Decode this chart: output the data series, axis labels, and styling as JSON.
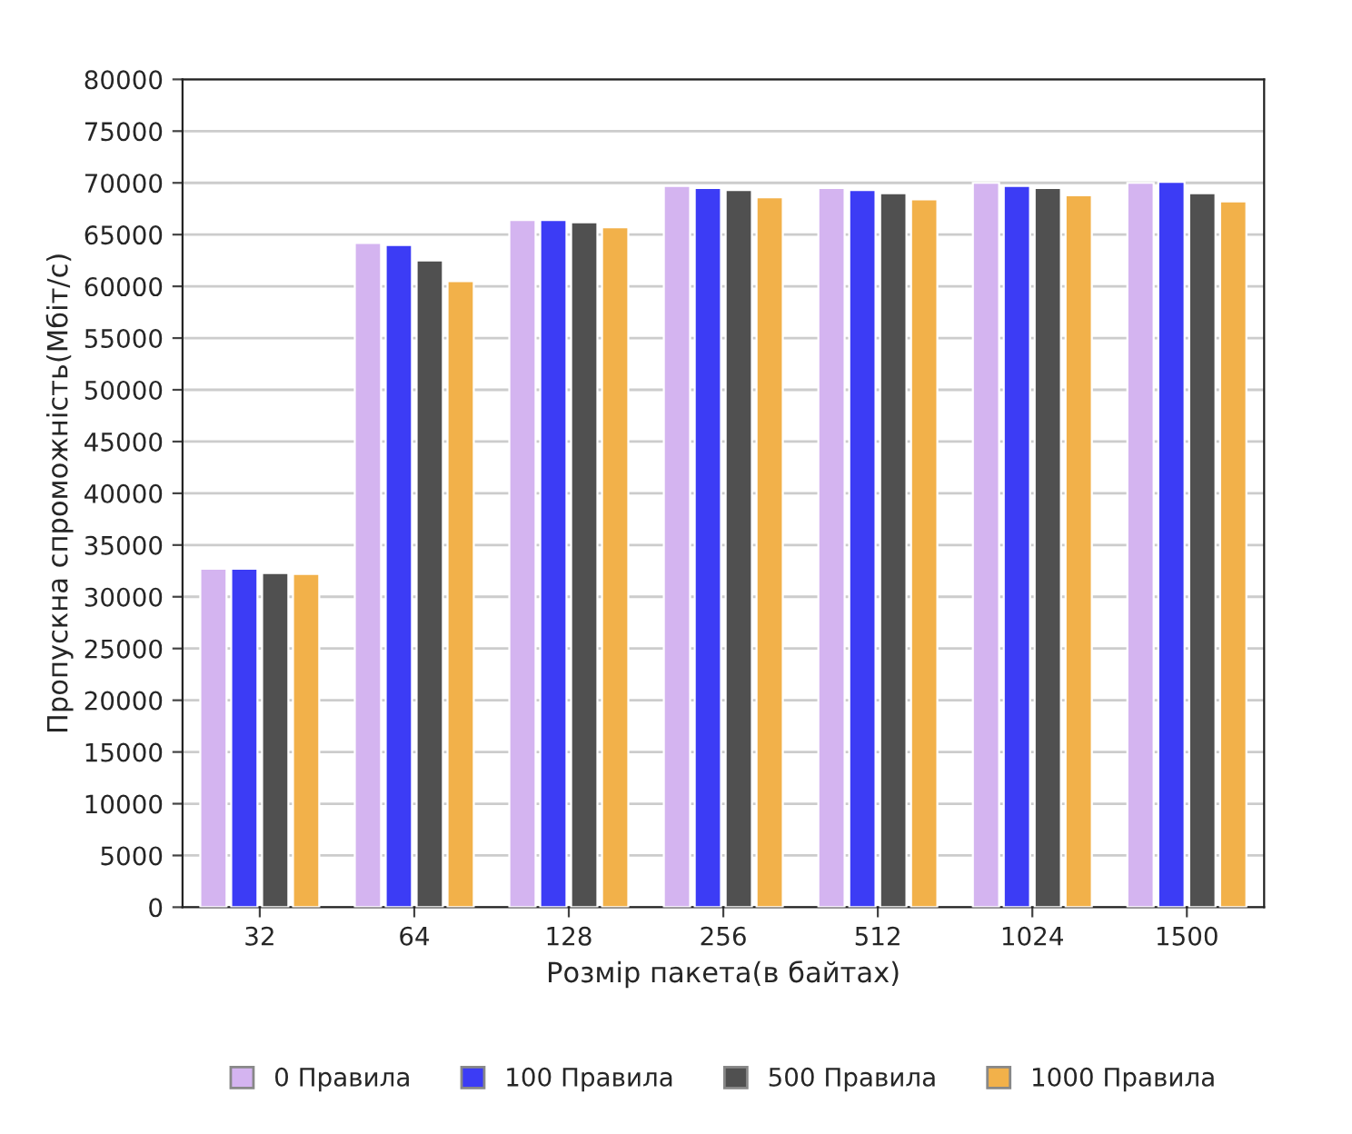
{
  "chart_data": {
    "type": "bar",
    "xlabel": "Розмір пакета(в байтах)",
    "ylabel": "Пропускна спроможність(Мбіт/с)",
    "categories": [
      "32",
      "64",
      "128",
      "256",
      "512",
      "1024",
      "1500"
    ],
    "series": [
      {
        "name": "0 Правила",
        "color": "#d4b4f0",
        "values": [
          32700,
          64200,
          66400,
          69700,
          69500,
          70000,
          70000
        ]
      },
      {
        "name": "100 Правила",
        "color": "#3c3cf5",
        "values": [
          32700,
          64000,
          66400,
          69500,
          69300,
          69700,
          70100
        ]
      },
      {
        "name": "500 Правила",
        "color": "#505050",
        "values": [
          32300,
          62500,
          66200,
          69300,
          69000,
          69500,
          69000
        ]
      },
      {
        "name": "1000 Правила",
        "color": "#f2b14a",
        "values": [
          32200,
          60500,
          65700,
          68600,
          68400,
          68800,
          68200
        ]
      }
    ],
    "ylim": [
      0,
      80000
    ],
    "yticks": [
      0,
      5000,
      10000,
      15000,
      20000,
      25000,
      30000,
      35000,
      40000,
      45000,
      50000,
      55000,
      60000,
      65000,
      70000,
      75000,
      80000
    ],
    "grid": "y",
    "legend": "bottom"
  }
}
